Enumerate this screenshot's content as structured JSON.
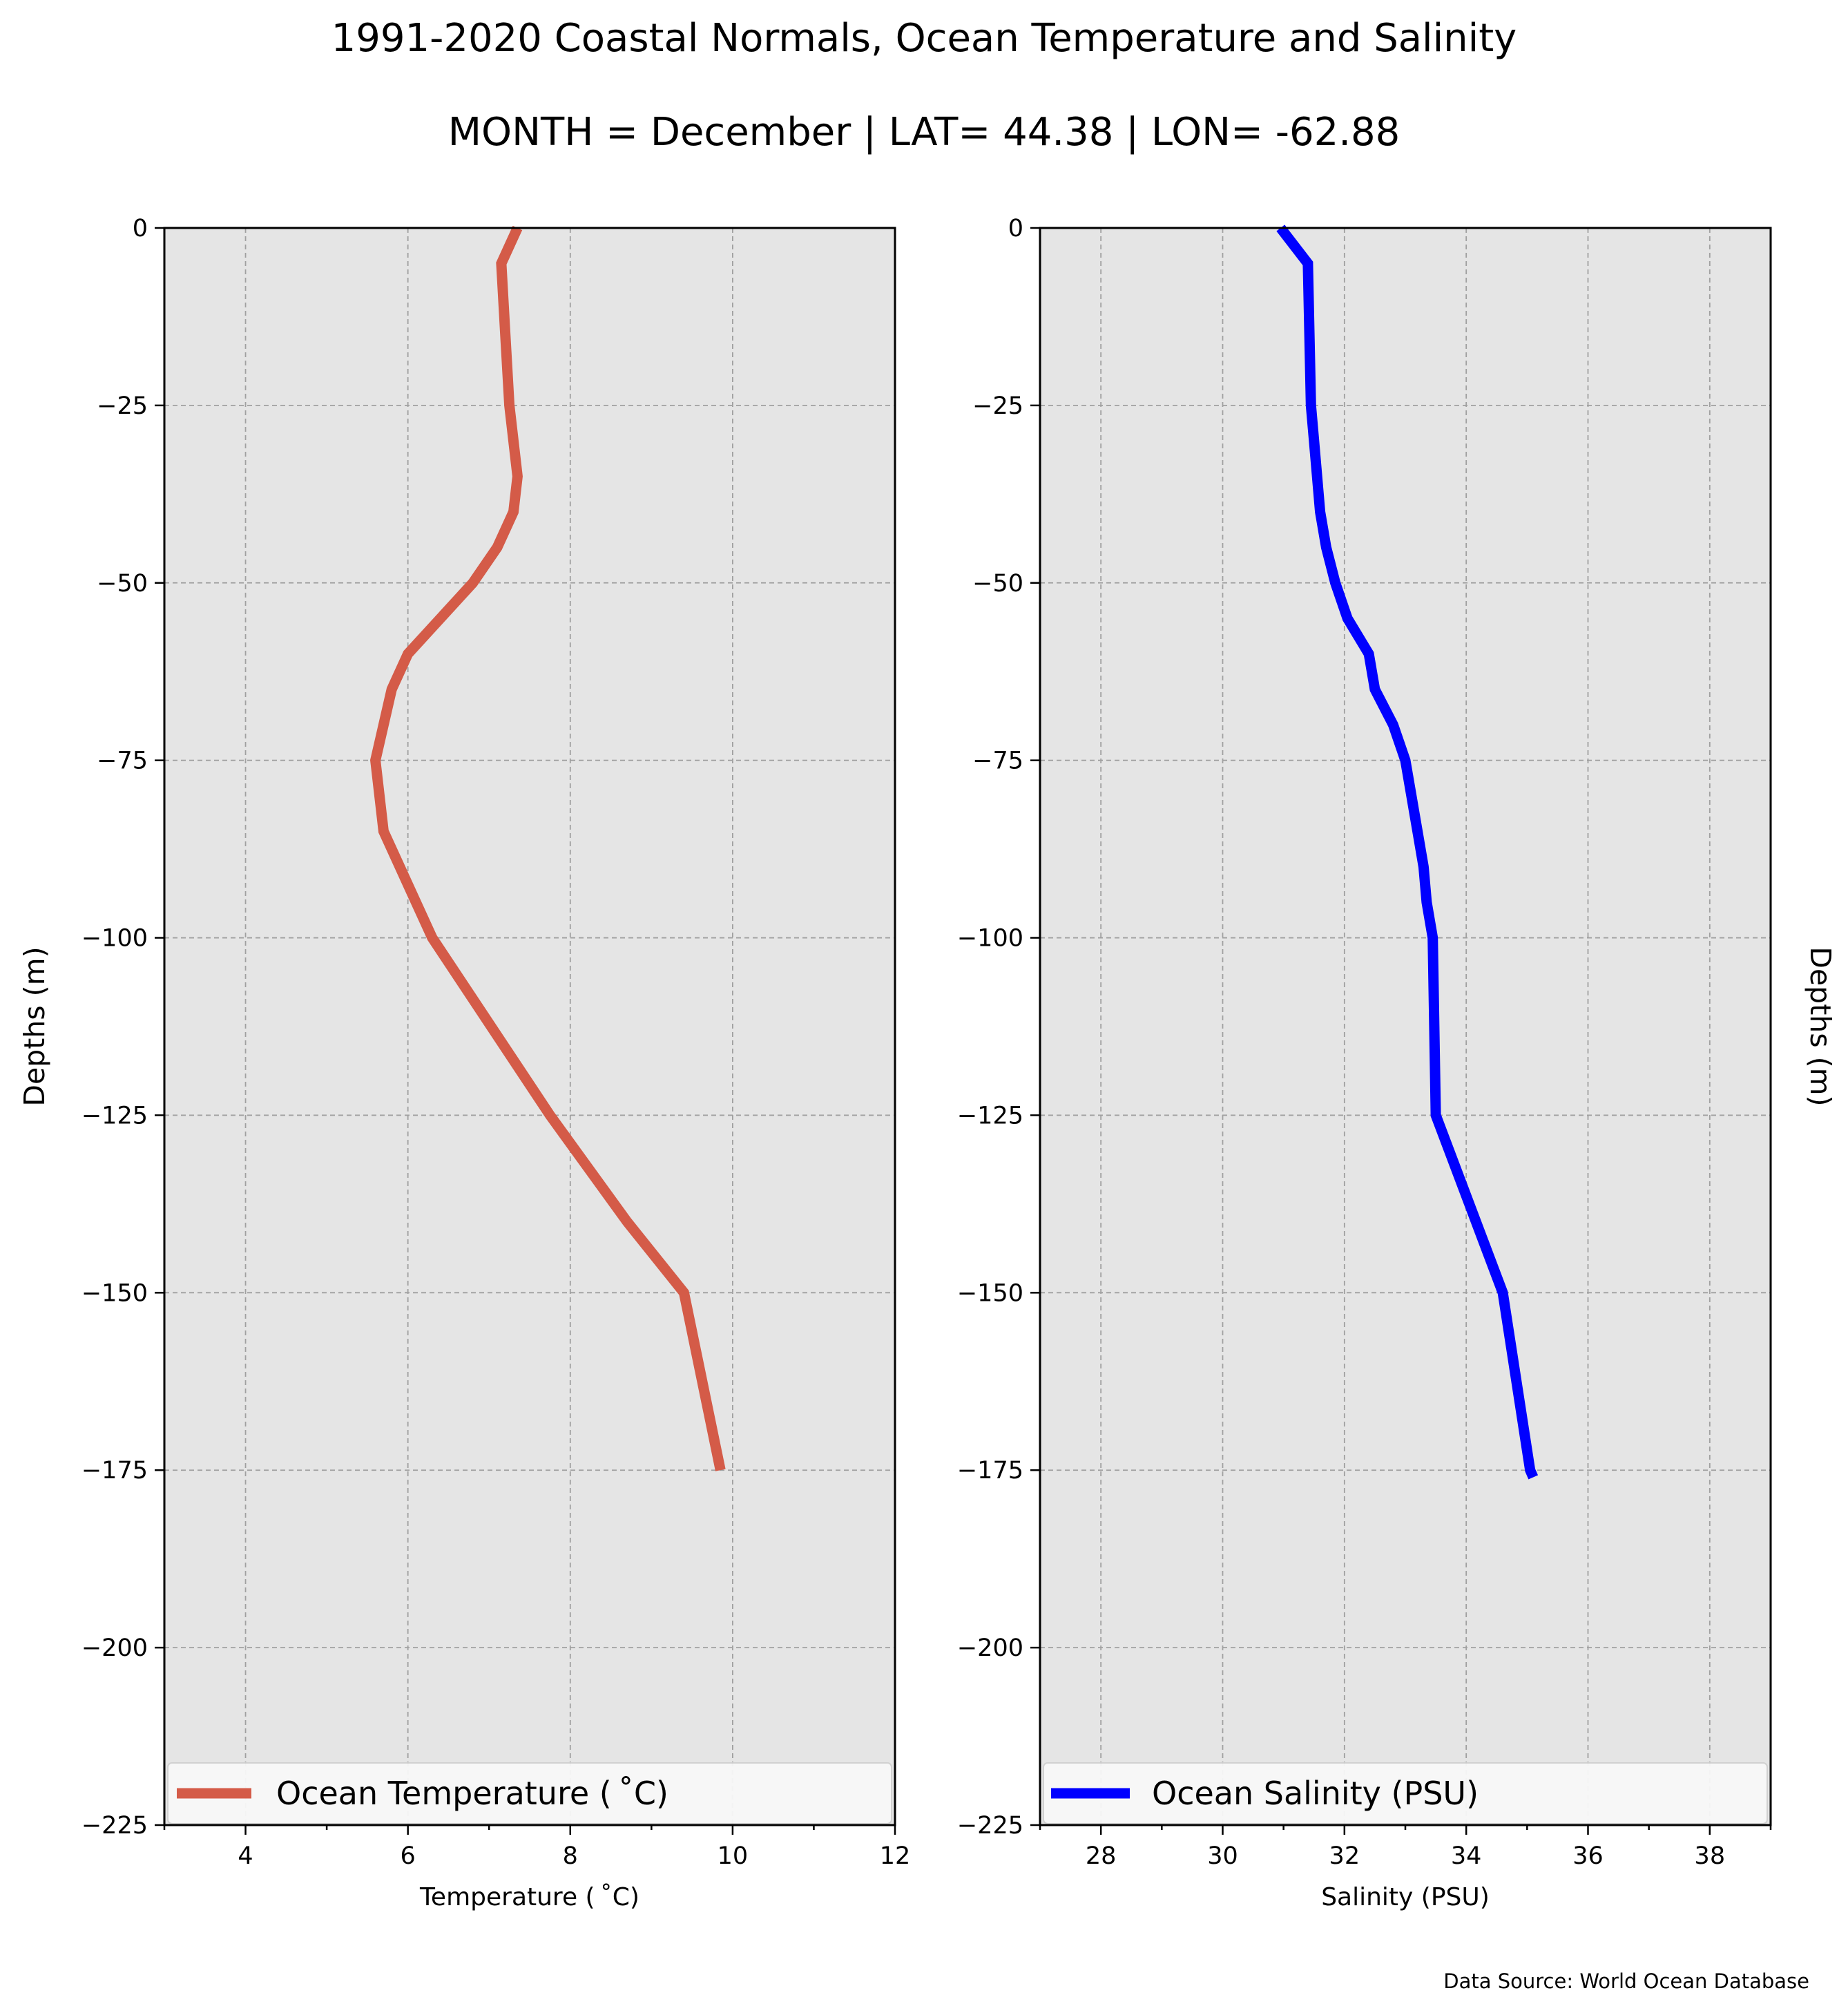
{
  "figure": {
    "title": "1991-2020 Coastal Normals, Ocean Temperature and Salinity",
    "subtitle": "MONTH = December | LAT= 44.38 | LON= -62.88",
    "source": "Data Source: World Ocean Database",
    "background": "#ffffff",
    "plot_background": "#e5e5e5"
  },
  "chart_data": [
    {
      "type": "line",
      "orientation": "profile",
      "xlabel": "Temperature ($^\\circ$C)",
      "xlabel_display": "Temperature ( ˚C)",
      "ylabel": "Depths (m)",
      "ylabel_side": "left",
      "xlim": [
        3,
        12
      ],
      "ylim": [
        -225,
        0
      ],
      "xticks": [
        4,
        6,
        8,
        10,
        12
      ],
      "xtick_labels": [
        "4",
        "6",
        "8",
        "10",
        "12"
      ],
      "x_minor_ticks": [
        3,
        5,
        7,
        9,
        11
      ],
      "yticks": [
        0,
        -25,
        -50,
        -75,
        -100,
        -125,
        -150,
        -175,
        -200,
        -225
      ],
      "ytick_labels": [
        "0",
        "−25",
        "−50",
        "−75",
        "−100",
        "−125",
        "−150",
        "−175",
        "−200",
        "−225"
      ],
      "grid": true,
      "legend_position": "bottom",
      "series": [
        {
          "name": "Ocean Temperature ( ˚C)",
          "color": "#d45b48",
          "x": [
            7.35,
            7.15,
            7.2,
            7.25,
            7.3,
            7.35,
            7.3,
            7.1,
            6.8,
            6.4,
            6.0,
            5.8,
            5.7,
            5.6,
            5.65,
            5.7,
            5.9,
            6.1,
            6.3,
            7.75,
            8.7,
            9.4,
            9.85
          ],
          "y": [
            0,
            -5,
            -15,
            -25,
            -30,
            -35,
            -40,
            -45,
            -50,
            -55,
            -60,
            -65,
            -70,
            -75,
            -80,
            -85,
            -90,
            -95,
            -100,
            -125,
            -140,
            -150,
            -175
          ]
        }
      ]
    },
    {
      "type": "line",
      "orientation": "profile",
      "xlabel": "Salinity (PSU)",
      "ylabel": "Depths (m)",
      "ylabel_side": "right",
      "xlim": [
        27,
        39
      ],
      "ylim": [
        -225,
        0
      ],
      "xticks": [
        28,
        30,
        32,
        34,
        36,
        38
      ],
      "xtick_labels": [
        "28",
        "30",
        "32",
        "34",
        "36",
        "38"
      ],
      "x_minor_ticks": [
        27,
        29,
        31,
        33,
        35,
        37,
        39
      ],
      "yticks": [
        0,
        -25,
        -50,
        -75,
        -100,
        -125,
        -150,
        -175,
        -200,
        -225
      ],
      "ytick_labels": [
        "0",
        "−25",
        "−50",
        "−75",
        "−100",
        "−125",
        "−150",
        "−175",
        "−200",
        "−225"
      ],
      "grid": true,
      "legend_position": "bottom",
      "series": [
        {
          "name": "Ocean Salinity (PSU)",
          "color": "#0000ff",
          "x": [
            30.95,
            31.4,
            31.45,
            31.5,
            31.55,
            31.6,
            31.7,
            31.85,
            32.05,
            32.4,
            32.5,
            32.8,
            33.0,
            33.1,
            33.2,
            33.3,
            33.35,
            33.45,
            33.5,
            34.6,
            35.05,
            35.1
          ],
          "y": [
            0,
            -5,
            -25,
            -30,
            -35,
            -40,
            -45,
            -50,
            -55,
            -60,
            -65,
            -70,
            -75,
            -80,
            -85,
            -90,
            -95,
            -100,
            -125,
            -150,
            -175,
            -176
          ]
        }
      ]
    }
  ]
}
